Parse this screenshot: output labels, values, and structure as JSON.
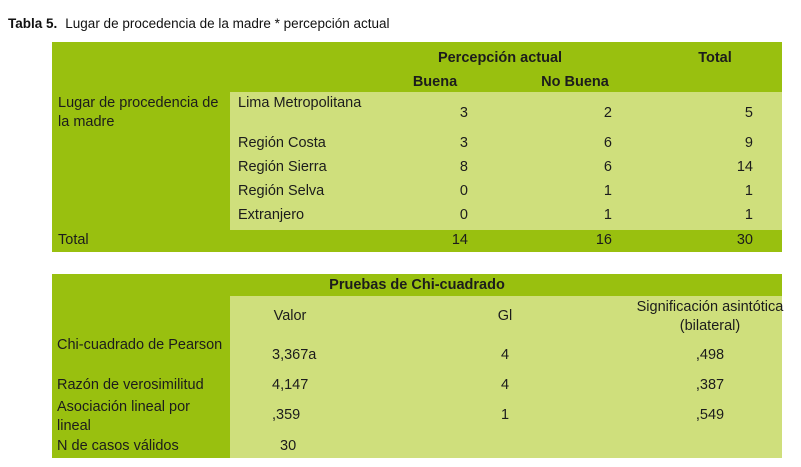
{
  "caption": {
    "label": "Tabla 5.",
    "text": "Lugar de procedencia de la madre * percepción actual"
  },
  "crosstab": {
    "header_group": "Percepción actual",
    "header_total": "Total",
    "col_buena": "Buena",
    "col_nobuena": "No Buena",
    "row_group": "Lugar de procedencia de la madre",
    "rows": [
      {
        "label": "Lima Metropolitana",
        "buena": "3",
        "nobuena": "2",
        "total": "5"
      },
      {
        "label": "Región Costa",
        "buena": "3",
        "nobuena": "6",
        "total": "9"
      },
      {
        "label": "Región Sierra",
        "buena": "8",
        "nobuena": "6",
        "total": "14"
      },
      {
        "label": "Región Selva",
        "buena": "0",
        "nobuena": "1",
        "total": "1"
      },
      {
        "label": "Extranjero",
        "buena": "0",
        "nobuena": "1",
        "total": "1"
      }
    ],
    "total_row": {
      "label": "Total",
      "buena": "14",
      "nobuena": "16",
      "total": "30"
    }
  },
  "chi": {
    "title": "Pruebas de Chi-cuadrado",
    "col_valor": "Valor",
    "col_gl": "Gl",
    "col_sig": "Significación asintótica (bilateral)",
    "rows": [
      {
        "label": "Chi-cuadrado de Pearson",
        "valor": "3,367a",
        "gl": "4",
        "sig": ",498"
      },
      {
        "label": "Razón de verosimilitud",
        "valor": "4,147",
        "gl": "4",
        "sig": ",387"
      },
      {
        "label": "Asociación lineal por lineal",
        "valor": ",359",
        "gl": "1",
        "sig": ",549"
      },
      {
        "label": "N de casos válidos",
        "valor": "30",
        "gl": "",
        "sig": ""
      }
    ]
  }
}
